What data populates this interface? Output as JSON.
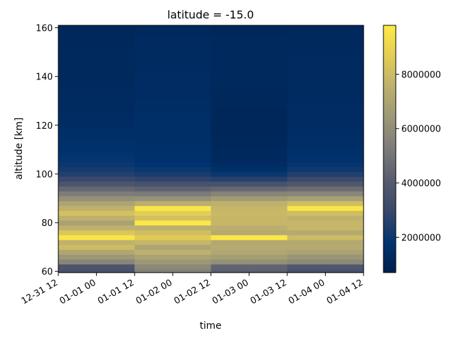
{
  "chart_data": {
    "type": "heatmap",
    "title": "latitude = -15.0",
    "xlabel": "time",
    "ylabel": "altitude [km]",
    "x_ticks": [
      "12-31 12",
      "01-01 00",
      "01-01 12",
      "01-02 00",
      "01-02 12",
      "01-03 00",
      "01-03 12",
      "01-04 00",
      "01-04 12"
    ],
    "x_range": [
      "12-31 12",
      "01-04 12"
    ],
    "columns": [
      "01-01 00",
      "01-02 00",
      "01-03 00",
      "01-04 00"
    ],
    "y_ticks": [
      60,
      80,
      100,
      120,
      140,
      160
    ],
    "ylim": [
      59.5,
      161
    ],
    "altitude_bins": [
      60,
      62,
      64,
      66,
      68,
      70,
      72,
      74,
      76,
      78,
      80,
      82,
      84,
      86,
      88,
      90,
      92,
      94,
      96,
      98,
      100,
      102,
      104,
      106,
      108,
      110,
      112,
      114,
      116,
      118,
      120,
      122,
      124,
      126,
      128,
      130,
      132,
      134,
      136,
      138,
      140,
      142,
      144,
      146,
      148,
      150,
      152,
      154,
      156,
      158,
      160
    ],
    "values": [
      [
        3500000,
        3700000,
        5700000,
        6400000,
        7100000,
        8000000,
        7600000,
        9600000,
        8400000,
        7600000,
        6900000,
        7600000,
        8200000,
        7600000,
        7000000,
        6100000,
        5300000,
        4500000,
        3700000,
        3000000,
        2500000,
        2200000,
        2000000,
        1900000,
        1800000,
        1700000,
        1650000,
        1600000,
        1550000,
        1500000,
        1450000,
        1400000,
        1400000,
        1350000,
        1350000,
        1300000,
        1300000,
        1300000,
        1250000,
        1250000,
        1250000,
        1200000,
        1200000,
        1200000,
        1200000,
        1200000,
        1200000,
        1150000,
        1150000,
        1150000,
        1100000
      ],
      [
        5500000,
        5800000,
        6400000,
        6900000,
        7600000,
        7000000,
        7800000,
        8600000,
        8100000,
        7500000,
        9700000,
        8200000,
        8700000,
        9600000,
        7500000,
        6200000,
        5200000,
        4300000,
        3500000,
        2800000,
        2300000,
        2000000,
        1800000,
        1700000,
        1650000,
        1600000,
        1600000,
        1550000,
        1550000,
        1500000,
        1500000,
        1500000,
        1500000,
        1450000,
        1450000,
        1450000,
        1400000,
        1400000,
        1400000,
        1400000,
        1400000,
        1400000,
        1350000,
        1350000,
        1350000,
        1350000,
        1300000,
        1300000,
        1300000,
        1250000,
        1200000
      ],
      [
        4200000,
        4400000,
        6100000,
        6700000,
        7100000,
        7300000,
        7200000,
        9700000,
        7300000,
        7500000,
        7800000,
        7800000,
        7900000,
        7800000,
        7600000,
        6600000,
        5600000,
        4500000,
        3500000,
        2600000,
        2000000,
        1600000,
        1400000,
        1300000,
        1250000,
        1200000,
        1150000,
        1150000,
        1100000,
        1100000,
        1100000,
        1100000,
        1100000,
        1100000,
        1150000,
        1150000,
        1150000,
        1150000,
        1200000,
        1200000,
        1200000,
        1200000,
        1200000,
        1200000,
        1200000,
        1200000,
        1200000,
        1200000,
        1200000,
        1150000,
        1100000
      ],
      [
        3500000,
        3800000,
        5800000,
        6300000,
        6900000,
        7300000,
        7200000,
        8000000,
        7300000,
        7800000,
        7800000,
        7600000,
        8100000,
        9600000,
        8100000,
        6800000,
        5700000,
        4700000,
        3800000,
        3100000,
        2500000,
        2100000,
        1900000,
        1750000,
        1650000,
        1600000,
        1550000,
        1500000,
        1450000,
        1450000,
        1400000,
        1400000,
        1400000,
        1400000,
        1400000,
        1350000,
        1350000,
        1350000,
        1350000,
        1300000,
        1300000,
        1300000,
        1300000,
        1300000,
        1300000,
        1250000,
        1250000,
        1250000,
        1250000,
        1200000,
        1150000
      ]
    ],
    "colorbar": {
      "colormap": "cividis",
      "vmin": 700000,
      "vmax": 9800000,
      "ticks": [
        2000000,
        4000000,
        6000000,
        8000000
      ],
      "tick_labels": [
        "2000000",
        "4000000",
        "6000000",
        "8000000"
      ]
    },
    "grid": false
  }
}
